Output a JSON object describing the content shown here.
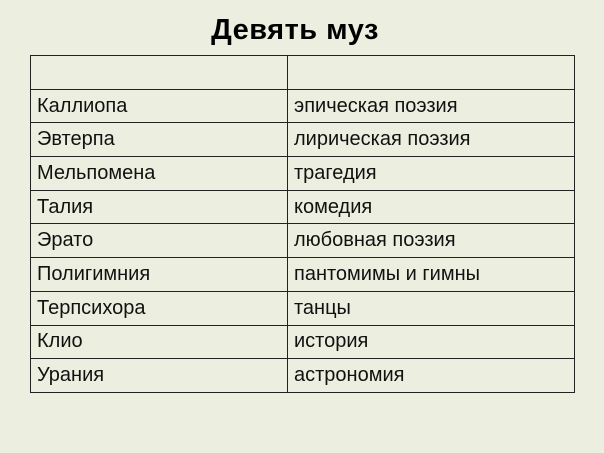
{
  "title": "Девять муз",
  "table": {
    "header": [
      "",
      ""
    ],
    "rows": [
      [
        "Каллиопа",
        "эпическая поэзия"
      ],
      [
        "Эвтерпа",
        "лирическая поэзия"
      ],
      [
        "Мельпомена",
        "трагедия"
      ],
      [
        "Талия",
        "комедия"
      ],
      [
        "Эрато",
        "любовная поэзия"
      ],
      [
        "Полигимния",
        "пантомимы и гимны"
      ],
      [
        "Терпсихора",
        "танцы"
      ],
      [
        "Клио",
        "история"
      ],
      [
        "Урания",
        "астрономия"
      ]
    ]
  }
}
